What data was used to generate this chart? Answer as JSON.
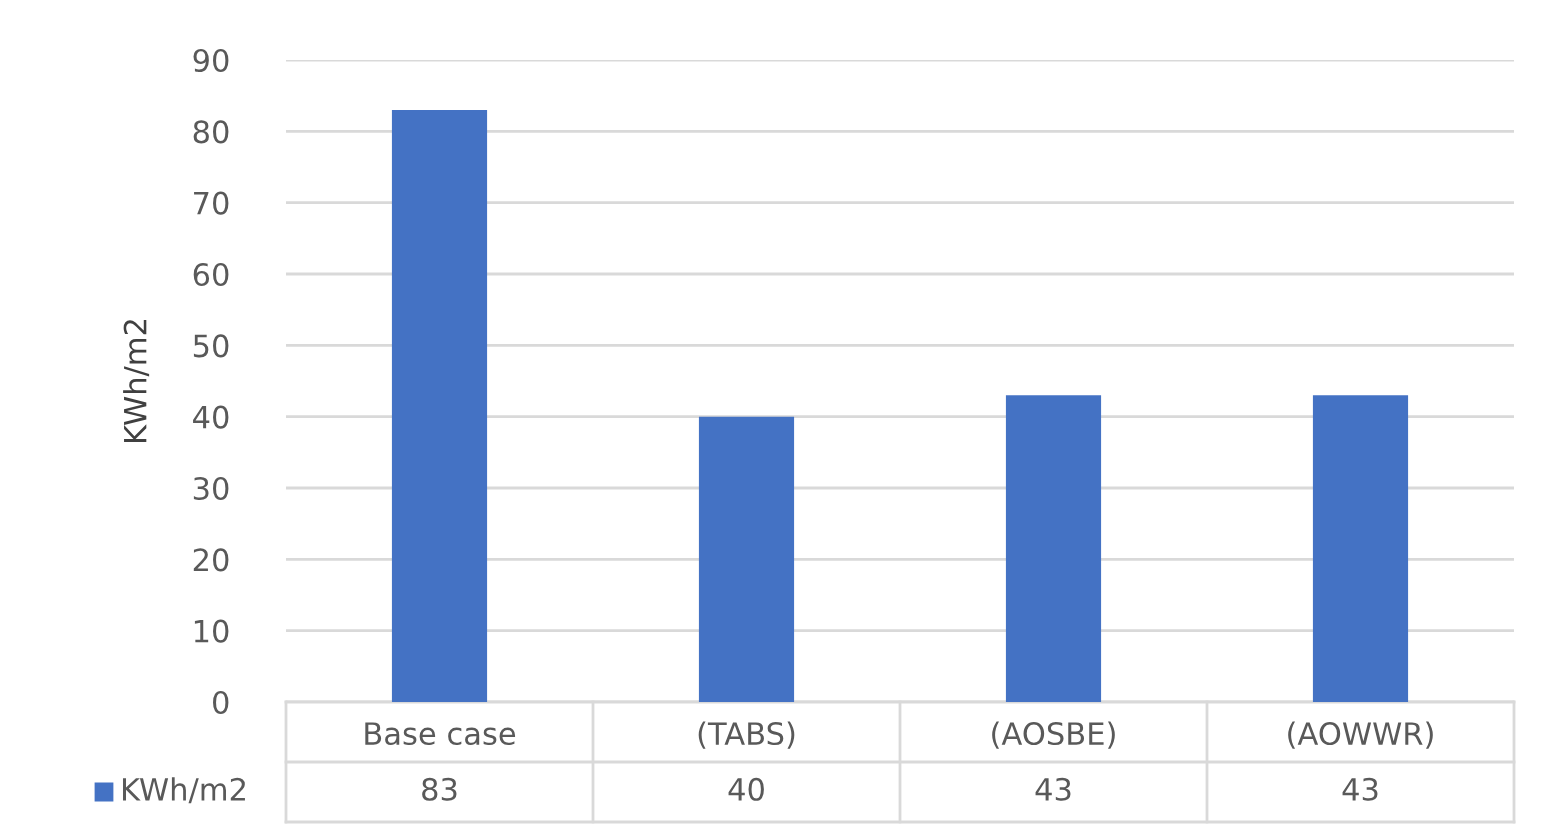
{
  "chart_data": {
    "type": "bar",
    "ylabel": "KWh/m2",
    "categories": [
      "Base case",
      "(TABS)",
      "(AOSBE)",
      "(AOWWR)"
    ],
    "series": [
      {
        "name": "KWh/m2",
        "color": "#4472c4",
        "values": [
          83,
          40,
          43,
          43
        ]
      }
    ],
    "ylim": [
      0,
      90
    ],
    "yticks": [
      0,
      10,
      20,
      30,
      40,
      50,
      60,
      70,
      80,
      90
    ],
    "grid": "y",
    "data_labels": true,
    "legend": "bottom"
  }
}
